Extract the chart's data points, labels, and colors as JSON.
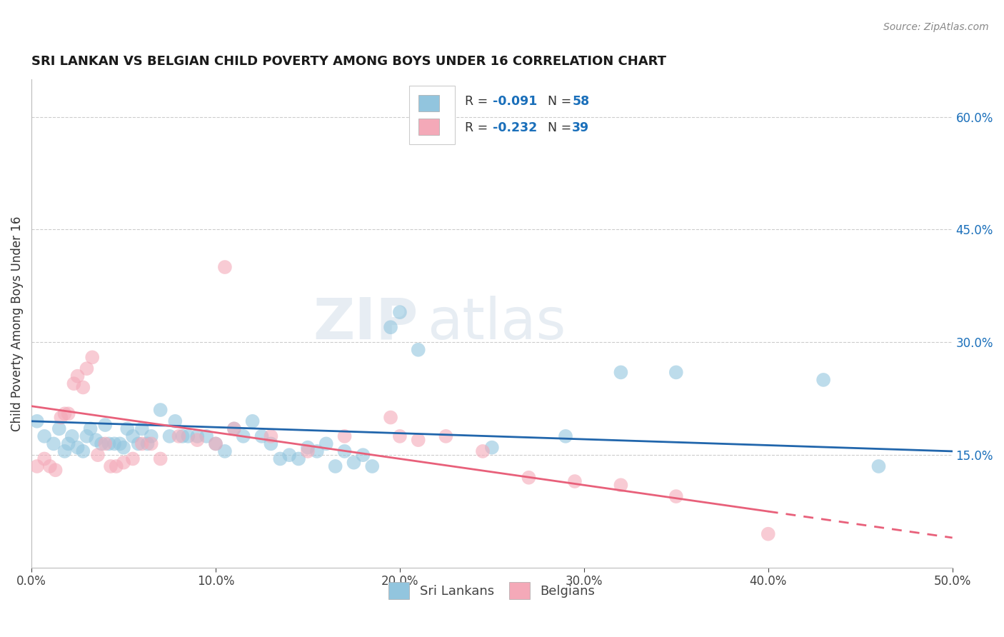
{
  "title": "SRI LANKAN VS BELGIAN CHILD POVERTY AMONG BOYS UNDER 16 CORRELATION CHART",
  "source": "Source: ZipAtlas.com",
  "ylabel": "Child Poverty Among Boys Under 16",
  "xlabel_ticks": [
    "0.0%",
    "10.0%",
    "20.0%",
    "30.0%",
    "40.0%",
    "50.0%"
  ],
  "xlabel_vals": [
    0.0,
    0.1,
    0.2,
    0.3,
    0.4,
    0.5
  ],
  "ylabel_ticks_right": [
    "15.0%",
    "30.0%",
    "45.0%",
    "60.0%"
  ],
  "ylabel_vals_right": [
    0.15,
    0.3,
    0.45,
    0.6
  ],
  "xlim": [
    0.0,
    0.5
  ],
  "ylim": [
    0.0,
    0.65
  ],
  "background_color": "#ffffff",
  "grid_color": "#cccccc",
  "blue_scatter_color": "#92c5de",
  "pink_scatter_color": "#f4a9b8",
  "blue_line_color": "#2166ac",
  "pink_line_color": "#e8607a",
  "legend_label_blue": "Sri Lankans",
  "legend_label_pink": "Belgians",
  "accent_color": "#1a6fba",
  "watermark_zip": "ZIP",
  "watermark_atlas": "atlas",
  "sri_lankan_x": [
    0.003,
    0.007,
    0.012,
    0.015,
    0.018,
    0.02,
    0.022,
    0.025,
    0.028,
    0.03,
    0.032,
    0.035,
    0.038,
    0.04,
    0.042,
    0.045,
    0.048,
    0.05,
    0.052,
    0.055,
    0.058,
    0.06,
    0.063,
    0.065,
    0.07,
    0.075,
    0.078,
    0.082,
    0.085,
    0.09,
    0.095,
    0.1,
    0.105,
    0.11,
    0.115,
    0.12,
    0.125,
    0.13,
    0.135,
    0.14,
    0.145,
    0.15,
    0.155,
    0.16,
    0.165,
    0.17,
    0.175,
    0.18,
    0.185,
    0.195,
    0.2,
    0.21,
    0.25,
    0.29,
    0.32,
    0.35,
    0.43,
    0.46
  ],
  "sri_lankan_y": [
    0.195,
    0.175,
    0.165,
    0.185,
    0.155,
    0.165,
    0.175,
    0.16,
    0.155,
    0.175,
    0.185,
    0.17,
    0.165,
    0.19,
    0.165,
    0.165,
    0.165,
    0.16,
    0.185,
    0.175,
    0.165,
    0.185,
    0.165,
    0.175,
    0.21,
    0.175,
    0.195,
    0.175,
    0.175,
    0.175,
    0.175,
    0.165,
    0.155,
    0.185,
    0.175,
    0.195,
    0.175,
    0.165,
    0.145,
    0.15,
    0.145,
    0.16,
    0.155,
    0.165,
    0.135,
    0.155,
    0.14,
    0.15,
    0.135,
    0.32,
    0.34,
    0.29,
    0.16,
    0.175,
    0.26,
    0.26,
    0.25,
    0.135
  ],
  "belgian_x": [
    0.003,
    0.007,
    0.01,
    0.013,
    0.016,
    0.018,
    0.02,
    0.023,
    0.025,
    0.028,
    0.03,
    0.033,
    0.036,
    0.04,
    0.043,
    0.046,
    0.05,
    0.055,
    0.06,
    0.065,
    0.07,
    0.08,
    0.09,
    0.1,
    0.105,
    0.11,
    0.13,
    0.15,
    0.17,
    0.195,
    0.2,
    0.21,
    0.225,
    0.245,
    0.27,
    0.295,
    0.32,
    0.35,
    0.4
  ],
  "belgian_y": [
    0.135,
    0.145,
    0.135,
    0.13,
    0.2,
    0.205,
    0.205,
    0.245,
    0.255,
    0.24,
    0.265,
    0.28,
    0.15,
    0.165,
    0.135,
    0.135,
    0.14,
    0.145,
    0.165,
    0.165,
    0.145,
    0.175,
    0.17,
    0.165,
    0.4,
    0.185,
    0.175,
    0.155,
    0.175,
    0.2,
    0.175,
    0.17,
    0.175,
    0.155,
    0.12,
    0.115,
    0.11,
    0.095,
    0.045
  ]
}
